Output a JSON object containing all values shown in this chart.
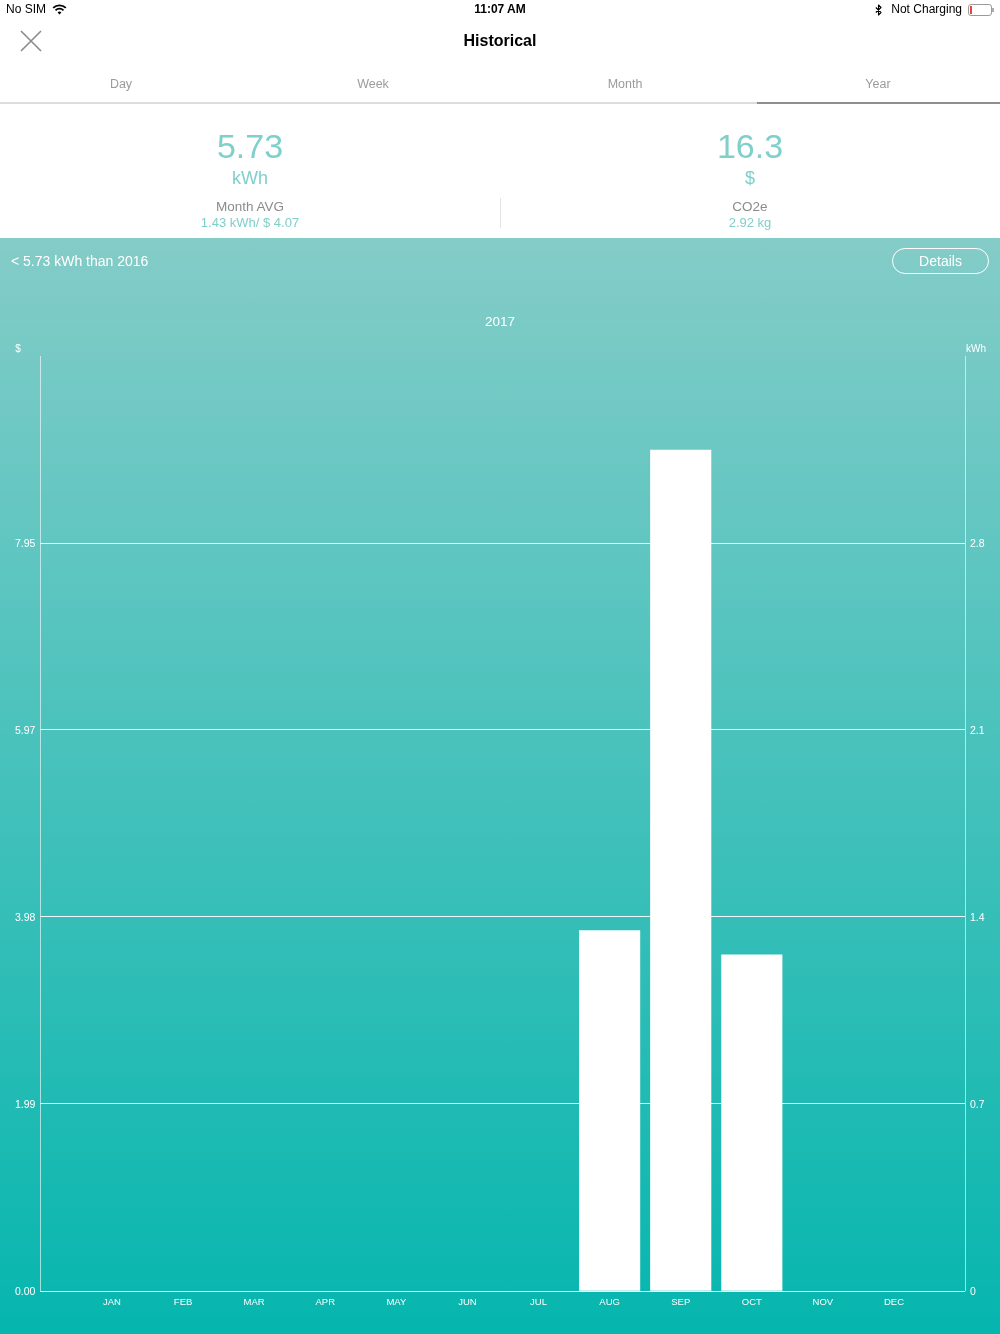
{
  "chart_data": [
    {
      "type": "other",
      "title": "Historical",
      "annotations": [
        "No SIM",
        "11:07 AM",
        "Not Charging",
        "Day",
        "Week",
        "Month",
        "Year",
        "5.73",
        "kWh",
        "Month AVG",
        "1.43 kWh/ $ 4.07",
        "16.3",
        "$",
        "CO2e",
        "2.92 kg"
      ]
    },
    {
      "type": "bar",
      "title": "2017",
      "ylabel": "$",
      "y2label": "kWh",
      "annotations": [
        "< 5.73 kWh than 2016",
        "Details"
      ],
      "categories": [
        "JAN",
        "FEB",
        "MAR",
        "APR",
        "MAY",
        "JUN",
        "JUL",
        "AUG",
        "SEP",
        "OCT",
        "NOV",
        "DEC"
      ],
      "series": [
        {
          "color": "#ffffff",
          "axis": "y2",
          "values": [
            0,
            0,
            0,
            0,
            0,
            0,
            0,
            1.35,
            3.15,
            1.26,
            0,
            0
          ]
        }
      ],
      "ylim": [
        0,
        9.94
      ],
      "yticks": [
        {
          "value": 0,
          "label": "0.00"
        },
        1.99,
        3.98,
        5.97,
        7.95
      ],
      "y2lim": [
        0,
        3.5
      ],
      "y2ticks": [
        0,
        0.7,
        1.4,
        2.1,
        2.8
      ],
      "grid": "y"
    }
  ]
}
